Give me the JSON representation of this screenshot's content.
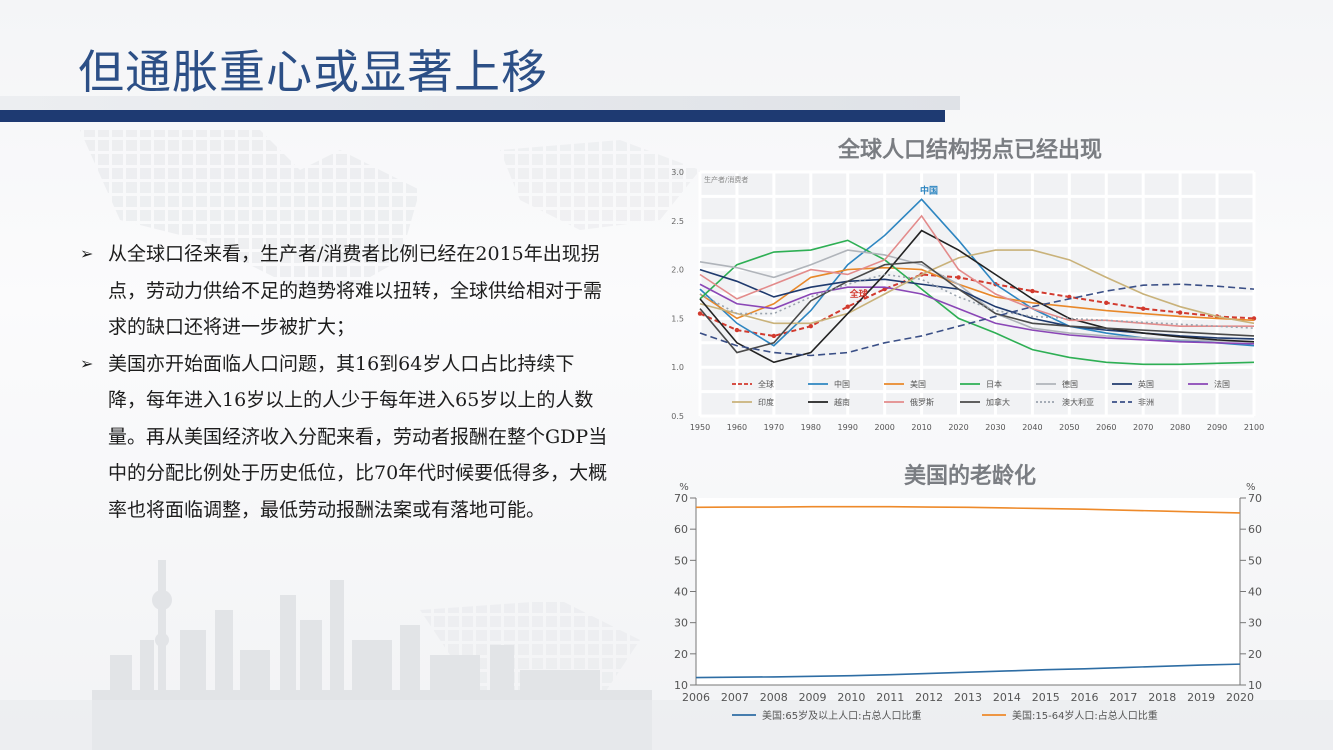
{
  "slide": {
    "title": "但通胀重心或显著上移",
    "bullets": [
      "从全球口径来看，生产者/消费者比例已经在2015年出现拐点，劳动力供给不足的趋势将难以扭转，全球供给相对于需求的缺口还将进一步被扩大；",
      "美国亦开始面临人口问题，其16到64岁人口占比持续下降，每年进入16岁以上的人少于每年进入65岁以上的人数量。再从美国经济收入分配来看，劳动者报酬在整个GDP当中的分配比例处于历史低位，比70年代时候要低得多，大概率也将面临调整，最低劳动报酬法案或有落地可能。"
    ],
    "bullet_icon": "arrow-bullet-icon"
  },
  "chart_data": [
    {
      "type": "line",
      "title": "全球人口结构拐点已经出现",
      "corner_note": "生产者/消费者",
      "x": [
        1950,
        1960,
        1970,
        1980,
        1990,
        2000,
        2010,
        2020,
        2030,
        2040,
        2050,
        2060,
        2070,
        2080,
        2090,
        2100
      ],
      "xtick_labels": [
        "1950",
        "1960",
        "1970",
        "1980",
        "1990",
        "2000",
        "2010",
        "2020",
        "2030",
        "2040",
        "2050",
        "2060",
        "2070",
        "2080",
        "2090",
        "2100"
      ],
      "ylim": [
        0.5,
        3.0
      ],
      "yticks": [
        "3.0",
        "2.5",
        "2.0",
        "1.5",
        "1.0",
        "0.5"
      ],
      "grid": true,
      "legend_position": "bottom-inside",
      "annotations": [
        {
          "text": "中国",
          "x": 2012,
          "y": 2.78
        },
        {
          "text": "全球",
          "x": 1993,
          "y": 1.72
        }
      ],
      "series": [
        {
          "name": "全球",
          "color": "#d23a2e",
          "dash": "dot-marker",
          "values": [
            1.55,
            1.38,
            1.32,
            1.42,
            1.62,
            1.8,
            1.95,
            1.92,
            1.85,
            1.78,
            1.72,
            1.66,
            1.6,
            1.56,
            1.52,
            1.5
          ]
        },
        {
          "name": "中国",
          "color": "#2e86c1",
          "values": [
            1.8,
            1.45,
            1.22,
            1.58,
            2.05,
            2.35,
            2.72,
            2.3,
            1.85,
            1.6,
            1.42,
            1.35,
            1.3,
            1.27,
            1.25,
            1.22
          ]
        },
        {
          "name": "美国",
          "color": "#e8882a",
          "values": [
            1.75,
            1.5,
            1.65,
            1.92,
            2.0,
            2.02,
            2.0,
            1.85,
            1.72,
            1.66,
            1.62,
            1.58,
            1.55,
            1.52,
            1.5,
            1.48
          ]
        },
        {
          "name": "日本",
          "color": "#2eaf54",
          "values": [
            1.7,
            2.05,
            2.18,
            2.2,
            2.3,
            2.1,
            1.8,
            1.5,
            1.35,
            1.18,
            1.1,
            1.05,
            1.03,
            1.03,
            1.04,
            1.05
          ]
        },
        {
          "name": "德国",
          "color": "#b0b4ba",
          "values": [
            2.08,
            2.02,
            1.92,
            2.05,
            2.2,
            2.15,
            2.05,
            1.85,
            1.55,
            1.4,
            1.35,
            1.32,
            1.3,
            1.28,
            1.27,
            1.26
          ]
        },
        {
          "name": "英国",
          "color": "#1f3a6e",
          "values": [
            2.0,
            1.88,
            1.72,
            1.82,
            1.88,
            1.9,
            1.85,
            1.8,
            1.62,
            1.5,
            1.42,
            1.38,
            1.35,
            1.32,
            1.3,
            1.29
          ]
        },
        {
          "name": "法国",
          "color": "#8a46b6",
          "values": [
            1.85,
            1.65,
            1.6,
            1.75,
            1.82,
            1.82,
            1.75,
            1.6,
            1.45,
            1.38,
            1.33,
            1.3,
            1.28,
            1.26,
            1.25,
            1.24
          ]
        },
        {
          "name": "印度",
          "color": "#c9b27a",
          "values": [
            1.65,
            1.55,
            1.45,
            1.45,
            1.55,
            1.75,
            1.95,
            2.12,
            2.2,
            2.2,
            2.1,
            1.92,
            1.75,
            1.62,
            1.52,
            1.45
          ]
        },
        {
          "name": "越南",
          "color": "#222222",
          "values": [
            1.7,
            1.25,
            1.05,
            1.15,
            1.55,
            1.95,
            2.4,
            2.2,
            1.95,
            1.7,
            1.5,
            1.4,
            1.35,
            1.31,
            1.28,
            1.26
          ]
        },
        {
          "name": "俄罗斯",
          "color": "#e38b8b",
          "values": [
            1.95,
            1.7,
            1.85,
            2.0,
            1.95,
            2.1,
            2.55,
            2.0,
            1.75,
            1.6,
            1.48,
            1.48,
            1.45,
            1.42,
            1.42,
            1.42
          ]
        },
        {
          "name": "加拿大",
          "color": "#4a4a4a",
          "values": [
            1.6,
            1.15,
            1.25,
            1.68,
            1.88,
            2.05,
            2.08,
            1.8,
            1.55,
            1.45,
            1.42,
            1.4,
            1.38,
            1.36,
            1.34,
            1.32
          ]
        },
        {
          "name": "澳大利亚",
          "color": "#9aa3ad",
          "dash": "dotted",
          "values": [
            1.75,
            1.55,
            1.55,
            1.72,
            1.85,
            1.95,
            1.9,
            1.72,
            1.58,
            1.52,
            1.5,
            1.48,
            1.46,
            1.44,
            1.42,
            1.4
          ]
        },
        {
          "name": "非洲",
          "color": "#3a4f86",
          "dash": "dashed",
          "values": [
            1.35,
            1.22,
            1.15,
            1.12,
            1.15,
            1.25,
            1.32,
            1.42,
            1.52,
            1.62,
            1.7,
            1.78,
            1.84,
            1.85,
            1.83,
            1.8
          ]
        }
      ]
    },
    {
      "type": "line",
      "title": "美国的老龄化",
      "x": [
        "2006",
        "2007",
        "2008",
        "2009",
        "2010",
        "2011",
        "2012",
        "2013",
        "2014",
        "2015",
        "2016",
        "2017",
        "2018",
        "2019",
        "2020"
      ],
      "y_unit_left": "%",
      "y_unit_right": "%",
      "ylim": [
        10,
        70
      ],
      "yticks": [
        70,
        60,
        50,
        40,
        30,
        20,
        10
      ],
      "grid": false,
      "legend_position": "bottom",
      "series": [
        {
          "name": "美国:65岁及以上人口:占总人口比重",
          "color": "#2e6da4",
          "values": [
            12.4,
            12.5,
            12.6,
            12.8,
            13.0,
            13.3,
            13.7,
            14.1,
            14.5,
            14.9,
            15.2,
            15.6,
            16.0,
            16.4,
            16.7
          ]
        },
        {
          "name": "美国:15-64岁人口:占总人口比重",
          "color": "#ee8a2a",
          "values": [
            67.0,
            67.1,
            67.1,
            67.2,
            67.2,
            67.2,
            67.1,
            67.0,
            66.8,
            66.6,
            66.4,
            66.1,
            65.8,
            65.5,
            65.2
          ]
        }
      ]
    }
  ]
}
